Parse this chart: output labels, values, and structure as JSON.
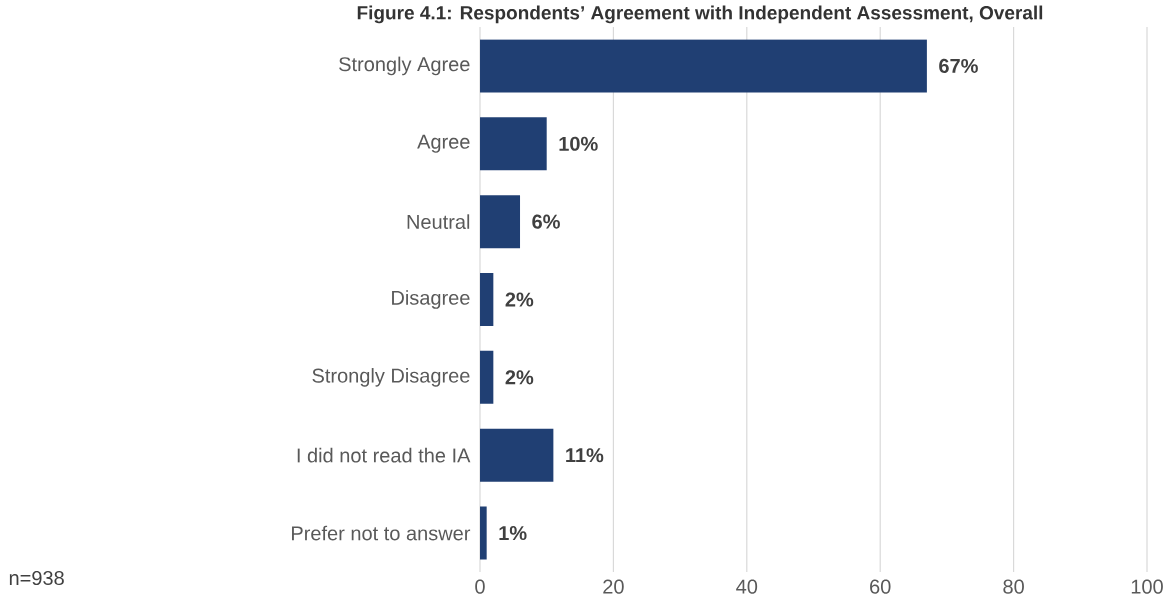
{
  "chart_data": {
    "type": "bar",
    "orientation": "horizontal",
    "title": "Figure 4.1: Respondents’ Agreement with Independent Assessment, Overall",
    "categories": [
      "Strongly Agree",
      "Agree",
      "Neutral",
      "Disagree",
      "Strongly Disagree",
      "I did not read the IA",
      "Prefer not to answer"
    ],
    "values": [
      67,
      10,
      6,
      2,
      2,
      11,
      1
    ],
    "value_labels": [
      "67%",
      "10%",
      "6%",
      "2%",
      "2%",
      "11%",
      "1%"
    ],
    "color": "#203f73",
    "xlim": [
      0,
      100
    ],
    "xticks": [
      0,
      20,
      40,
      60,
      80,
      100
    ],
    "grid": "x",
    "annotations": [
      "n=938"
    ]
  }
}
